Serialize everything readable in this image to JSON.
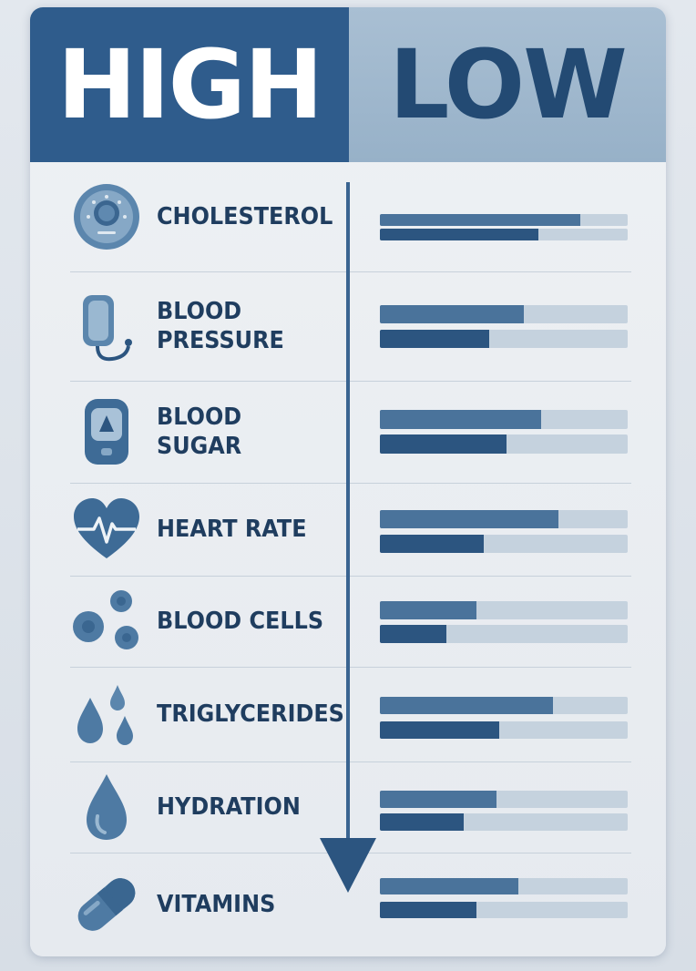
{
  "header": {
    "high": "HIGH",
    "low": "LOW"
  },
  "colors": {
    "high_header": "#2f5c8c",
    "low_header": "#a9bfd3",
    "label_text": "#1f3d5f",
    "bar_top": "#4a739b",
    "bar_bottom": "#2c5580",
    "bar_track": "#c5d2de",
    "arrow": "#2c5580"
  },
  "axis_arrow": {
    "direction": "high-to-low",
    "icon": "down-arrow-icon"
  },
  "rows": [
    {
      "label": "CHOLESTEROL",
      "icon": "cholesterol-gauge-icon",
      "bars": [
        0.81,
        0.64
      ]
    },
    {
      "label": "BLOOD\nPRESSURE",
      "icon": "blood-pressure-cuff-icon",
      "bars": [
        0.58,
        0.44
      ]
    },
    {
      "label": "BLOOD\nSUGAR",
      "icon": "glucose-meter-icon",
      "bars": [
        0.65,
        0.51
      ]
    },
    {
      "label": "HEART RATE",
      "icon": "heart-pulse-icon",
      "bars": [
        0.72,
        0.42
      ]
    },
    {
      "label": "BLOOD CELLS",
      "icon": "blood-cells-icon",
      "bars": [
        0.39,
        0.27
      ]
    },
    {
      "label": "TRIGLYCERIDES",
      "icon": "droplets-icon",
      "bars": [
        0.7,
        0.48
      ]
    },
    {
      "label": "HYDRATION",
      "icon": "water-drop-icon",
      "bars": [
        0.47,
        0.34
      ]
    },
    {
      "label": "VITAMINS",
      "icon": "capsule-icon",
      "bars": [
        0.56,
        0.39
      ]
    }
  ]
}
